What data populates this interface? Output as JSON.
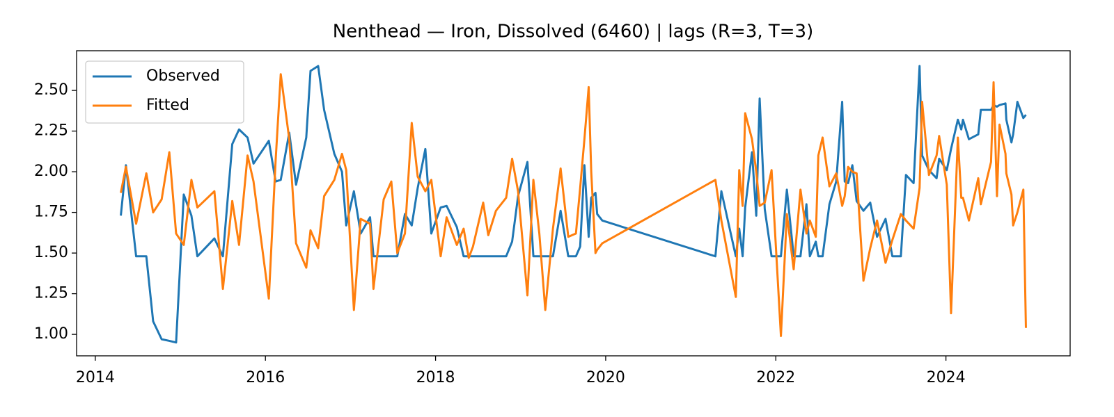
{
  "chart_data": {
    "type": "line",
    "title": "Nenthead — Iron, Dissolved (6460) | lags (R=3, T=3)",
    "x": [
      2014.3,
      2014.36,
      2014.48,
      2014.6,
      2014.68,
      2014.78,
      2014.87,
      2014.95,
      2015.04,
      2015.13,
      2015.2,
      2015.4,
      2015.5,
      2015.61,
      2015.69,
      2015.79,
      2015.86,
      2016.04,
      2016.12,
      2016.18,
      2016.28,
      2016.36,
      2016.48,
      2016.53,
      2016.62,
      2016.69,
      2016.81,
      2016.9,
      2016.95,
      2017.04,
      2017.12,
      2017.23,
      2017.27,
      2017.39,
      2017.48,
      2017.55,
      2017.64,
      2017.72,
      2017.79,
      2017.88,
      2017.95,
      2018.06,
      2018.13,
      2018.25,
      2018.33,
      2018.39,
      2018.44,
      2018.56,
      2018.62,
      2018.71,
      2018.83,
      2018.9,
      2018.97,
      2019.08,
      2019.15,
      2019.22,
      2019.29,
      2019.38,
      2019.47,
      2019.56,
      2019.65,
      2019.7,
      2019.75,
      2019.8,
      2019.83,
      2019.88,
      2019.9,
      2019.96,
      2021.29,
      2021.36,
      2021.53,
      2021.57,
      2021.61,
      2021.64,
      2021.72,
      2021.77,
      2021.81,
      2021.87,
      2021.95,
      2022.06,
      2022.13,
      2022.21,
      2022.29,
      2022.36,
      2022.4,
      2022.47,
      2022.5,
      2022.55,
      2022.63,
      2022.71,
      2022.78,
      2022.81,
      2022.85,
      2022.9,
      2022.95,
      2023.03,
      2023.11,
      2023.19,
      2023.29,
      2023.37,
      2023.47,
      2023.53,
      2023.62,
      2023.69,
      2023.72,
      2023.8,
      2023.89,
      2023.92,
      2024.01,
      2024.06,
      2024.14,
      2024.18,
      2024.2,
      2024.27,
      2024.38,
      2024.41,
      2024.53,
      2024.56,
      2024.6,
      2024.63,
      2024.7,
      2024.71,
      2024.77,
      2024.79,
      2024.84,
      2024.91,
      2024.94
    ],
    "series": [
      {
        "name": "Observed",
        "color": "#1f77b4",
        "values": [
          1.73,
          2.04,
          1.48,
          1.48,
          1.08,
          0.97,
          0.96,
          0.95,
          1.86,
          1.73,
          1.48,
          1.59,
          1.48,
          2.17,
          2.26,
          2.21,
          2.05,
          2.19,
          1.94,
          1.95,
          2.24,
          1.92,
          2.21,
          2.62,
          2.65,
          2.38,
          2.11,
          2.0,
          1.67,
          1.88,
          1.62,
          1.72,
          1.48,
          1.48,
          1.48,
          1.48,
          1.74,
          1.67,
          1.9,
          2.14,
          1.62,
          1.78,
          1.79,
          1.66,
          1.48,
          1.48,
          1.48,
          1.48,
          1.48,
          1.48,
          1.48,
          1.57,
          1.85,
          2.06,
          1.48,
          1.48,
          1.48,
          1.48,
          1.76,
          1.48,
          1.48,
          1.54,
          2.04,
          1.6,
          1.84,
          1.87,
          1.74,
          1.7,
          1.48,
          1.88,
          1.48,
          1.65,
          1.48,
          1.78,
          2.12,
          1.73,
          2.45,
          1.77,
          1.48,
          1.48,
          1.89,
          1.48,
          1.48,
          1.8,
          1.48,
          1.57,
          1.48,
          1.48,
          1.8,
          1.94,
          2.43,
          1.94,
          1.93,
          2.04,
          1.82,
          1.76,
          1.81,
          1.6,
          1.71,
          1.48,
          1.48,
          1.98,
          1.93,
          2.65,
          2.1,
          2.01,
          1.96,
          2.08,
          2.01,
          2.14,
          2.32,
          2.26,
          2.32,
          2.2,
          2.23,
          2.38,
          2.38,
          2.41,
          2.4,
          2.41,
          2.42,
          2.32,
          2.18,
          2.23,
          2.43,
          2.33,
          2.35
        ]
      },
      {
        "name": "Fitted",
        "color": "#ff7f0e",
        "values": [
          1.87,
          2.03,
          1.68,
          1.99,
          1.75,
          1.83,
          2.12,
          1.62,
          1.55,
          1.95,
          1.78,
          1.88,
          1.28,
          1.82,
          1.55,
          2.1,
          1.94,
          1.22,
          2.07,
          2.6,
          2.2,
          1.56,
          1.41,
          1.64,
          1.53,
          1.85,
          1.95,
          2.11,
          2.01,
          1.15,
          1.71,
          1.68,
          1.28,
          1.83,
          1.94,
          1.5,
          1.62,
          2.3,
          1.97,
          1.88,
          1.95,
          1.48,
          1.72,
          1.55,
          1.65,
          1.47,
          1.54,
          1.81,
          1.61,
          1.76,
          1.84,
          2.08,
          1.88,
          1.24,
          1.95,
          1.62,
          1.15,
          1.65,
          2.02,
          1.6,
          1.62,
          1.9,
          2.2,
          2.52,
          2.0,
          1.5,
          1.52,
          1.56,
          1.95,
          1.7,
          1.23,
          2.01,
          1.79,
          2.36,
          2.2,
          2.0,
          1.79,
          1.81,
          2.01,
          0.99,
          1.74,
          1.4,
          1.89,
          1.62,
          1.7,
          1.6,
          2.1,
          2.21,
          1.91,
          1.99,
          1.79,
          1.85,
          2.03,
          2.0,
          1.99,
          1.33,
          1.53,
          1.7,
          1.44,
          1.58,
          1.74,
          1.7,
          1.65,
          1.9,
          2.43,
          1.98,
          2.1,
          2.22,
          1.92,
          1.13,
          2.21,
          1.84,
          1.84,
          1.7,
          1.96,
          1.8,
          2.06,
          2.55,
          1.85,
          2.29,
          2.11,
          1.99,
          1.86,
          1.67,
          1.75,
          1.89,
          1.04
        ]
      }
    ],
    "xlim": [
      2013.78,
      2025.46
    ],
    "ylim": [
      0.868,
      2.744
    ],
    "xticks": [
      2014,
      2016,
      2018,
      2020,
      2022,
      2024
    ],
    "yticks": [
      {
        "value": 1.0,
        "label": "1.00"
      },
      {
        "value": 1.25,
        "label": "1.25"
      },
      {
        "value": 1.5,
        "label": "1.50"
      },
      {
        "value": 1.75,
        "label": "1.75"
      },
      {
        "value": 2.0,
        "label": "2.00"
      },
      {
        "value": 2.25,
        "label": "2.25"
      },
      {
        "value": 2.5,
        "label": "2.50"
      }
    ],
    "legend": "upper left"
  }
}
